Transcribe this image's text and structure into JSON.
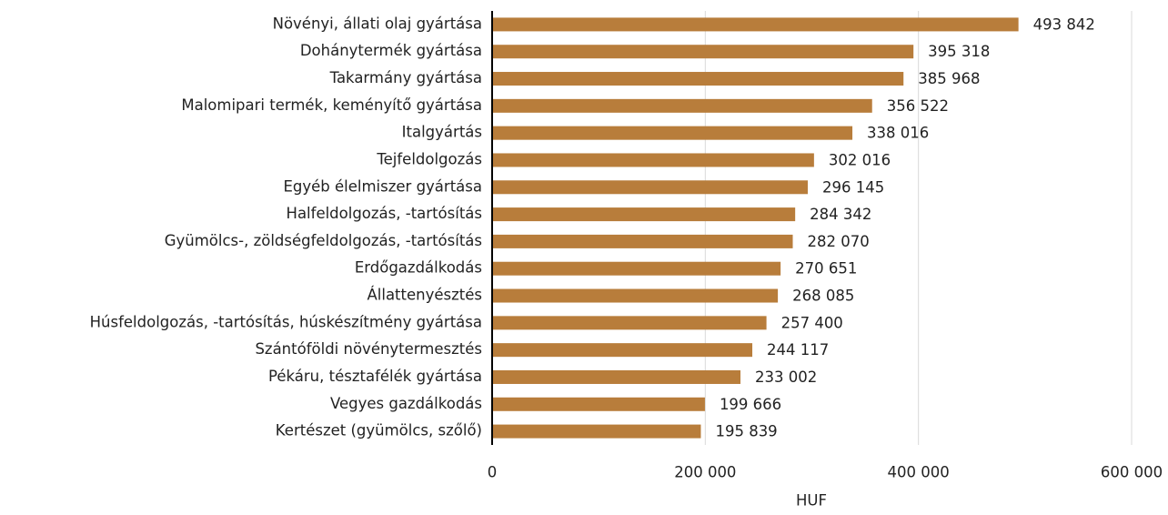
{
  "chart_data": {
    "type": "bar",
    "orientation": "horizontal",
    "categories": [
      "Növényi, állati olaj gyártása",
      "Dohánytermék gyártása",
      "Takarmány gyártása",
      "Malomipari termék, keményítő gyártása",
      "Italgyártás",
      "Tejfeldolgozás",
      "Egyéb élelmiszer gyártása",
      "Halfeldolgozás, -tartósítás",
      "Gyümölcs-, zöldségfeldolgozás, -tartósítás",
      "Erdőgazdálkodás",
      "Állattenyésztés",
      "Húsfeldolgozás, -tartósítás, húskészítmény gyártása",
      "Szántóföldi növénytermesztés",
      "Pékáru, tésztafélék gyártása",
      "Vegyes gazdálkodás",
      "Kertészet (gyümölcs, szőlő)"
    ],
    "values": [
      493842,
      395318,
      385968,
      356522,
      338016,
      302016,
      296145,
      284342,
      282070,
      270651,
      268085,
      257400,
      244117,
      233002,
      199666,
      195839
    ],
    "value_labels": [
      "493 842",
      "395 318",
      "385 968",
      "356 522",
      "338 016",
      "302 016",
      "296 145",
      "284 342",
      "282 070",
      "270 651",
      "268 085",
      "257 400",
      "244 117",
      "233 002",
      "199 666",
      "195 839"
    ],
    "color": "#b87d3b",
    "x_label": "HUF",
    "xlim": [
      0,
      600000
    ],
    "xticks": [
      0,
      {
        "value": 200000,
        "label": "200 000"
      },
      {
        "value": 400000,
        "label": "400 000"
      },
      {
        "value": 600000,
        "label": "600 000"
      }
    ],
    "grid": true
  }
}
